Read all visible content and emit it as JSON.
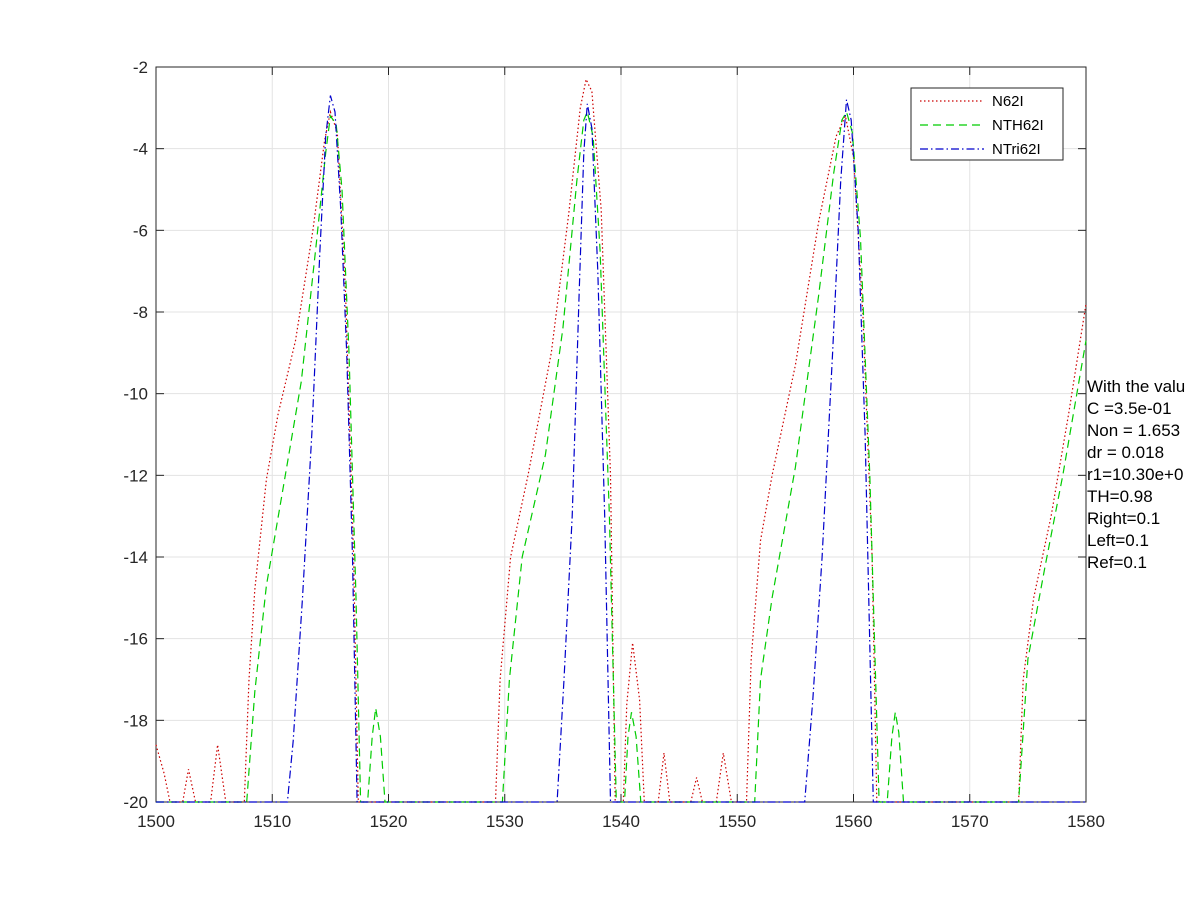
{
  "chart_data": {
    "type": "line",
    "xlim": [
      1500,
      1580
    ],
    "ylim": [
      -20,
      -2
    ],
    "x_ticks": [
      1500,
      1510,
      1520,
      1530,
      1540,
      1550,
      1560,
      1570,
      1580
    ],
    "y_ticks": [
      -20,
      -18,
      -16,
      -14,
      -12,
      -10,
      -8,
      -6,
      -4,
      -2
    ],
    "grid": true,
    "legend_position": "top-right",
    "colors": {
      "N62I": "#cc0000",
      "NTH62I": "#00cc00",
      "NTri62I": "#0000cc",
      "grid": "#e3e3e3",
      "axis": "#262626"
    },
    "series": [
      {
        "name": "N62I",
        "style": "dotted",
        "points": [
          [
            1500,
            -18.6
          ],
          [
            1500.7,
            -19.3
          ],
          [
            1501.2,
            -20
          ],
          [
            1502.3,
            -20
          ],
          [
            1502.8,
            -19.2
          ],
          [
            1503.4,
            -20
          ],
          [
            1504.7,
            -20
          ],
          [
            1505.3,
            -18.6
          ],
          [
            1506,
            -20
          ],
          [
            1507.6,
            -20
          ],
          [
            1508,
            -17
          ],
          [
            1508.5,
            -14.8
          ],
          [
            1509.5,
            -12.1
          ],
          [
            1510.5,
            -10.5
          ],
          [
            1512,
            -8.7
          ],
          [
            1513.5,
            -6
          ],
          [
            1514.5,
            -3.8
          ],
          [
            1515,
            -3.1
          ],
          [
            1515.6,
            -3.6
          ],
          [
            1516.3,
            -7.5
          ],
          [
            1517,
            -14
          ],
          [
            1517.4,
            -20
          ],
          [
            1518.3,
            -20
          ],
          [
            1529.2,
            -20
          ],
          [
            1529.6,
            -17
          ],
          [
            1530.5,
            -14
          ],
          [
            1532,
            -12
          ],
          [
            1534,
            -9
          ],
          [
            1535.5,
            -5.6
          ],
          [
            1536.5,
            -3
          ],
          [
            1537,
            -2.3
          ],
          [
            1537.5,
            -2.6
          ],
          [
            1538.3,
            -5.5
          ],
          [
            1539.1,
            -12
          ],
          [
            1539.5,
            -20
          ],
          [
            1540.2,
            -20
          ],
          [
            1540.5,
            -17.6
          ],
          [
            1541,
            -16.1
          ],
          [
            1541.6,
            -17.5
          ],
          [
            1542,
            -20
          ],
          [
            1543.2,
            -20
          ],
          [
            1543.7,
            -18.8
          ],
          [
            1544.2,
            -20
          ],
          [
            1546,
            -20
          ],
          [
            1546.5,
            -19.4
          ],
          [
            1547,
            -20
          ],
          [
            1548.2,
            -20
          ],
          [
            1548.8,
            -18.8
          ],
          [
            1549.5,
            -20
          ],
          [
            1550.8,
            -20
          ],
          [
            1551.2,
            -16.5
          ],
          [
            1552,
            -13.6
          ],
          [
            1553,
            -12
          ],
          [
            1555,
            -9.3
          ],
          [
            1557,
            -5.8
          ],
          [
            1558.5,
            -3.7
          ],
          [
            1559.3,
            -3.2
          ],
          [
            1560,
            -4.2
          ],
          [
            1560.8,
            -8
          ],
          [
            1561.6,
            -14
          ],
          [
            1562,
            -20
          ],
          [
            1562.8,
            -20
          ],
          [
            1574.2,
            -20
          ],
          [
            1574.6,
            -17
          ],
          [
            1575.5,
            -15
          ],
          [
            1577,
            -13
          ],
          [
            1578.5,
            -10.5
          ],
          [
            1580,
            -7.8
          ]
        ]
      },
      {
        "name": "NTH62I",
        "style": "dashed",
        "points": [
          [
            1500,
            -20
          ],
          [
            1507.8,
            -20
          ],
          [
            1508.5,
            -17.3
          ],
          [
            1509.5,
            -14.7
          ],
          [
            1511,
            -12.2
          ],
          [
            1512.5,
            -9.7
          ],
          [
            1513.8,
            -6.3
          ],
          [
            1514.6,
            -4.1
          ],
          [
            1515,
            -3.2
          ],
          [
            1515.5,
            -3.4
          ],
          [
            1516,
            -5
          ],
          [
            1516.6,
            -9
          ],
          [
            1517.2,
            -15
          ],
          [
            1517.6,
            -20
          ],
          [
            1518.2,
            -20
          ],
          [
            1518.6,
            -18.4
          ],
          [
            1518.9,
            -17.7
          ],
          [
            1519.3,
            -18.4
          ],
          [
            1519.7,
            -20
          ],
          [
            1529.8,
            -20
          ],
          [
            1530.4,
            -17
          ],
          [
            1531.5,
            -14
          ],
          [
            1533.5,
            -11.5
          ],
          [
            1535,
            -8.4
          ],
          [
            1536.2,
            -4.8
          ],
          [
            1536.8,
            -3.3
          ],
          [
            1537.1,
            -3.1
          ],
          [
            1537.6,
            -3.7
          ],
          [
            1538.2,
            -6.5
          ],
          [
            1539,
            -13
          ],
          [
            1539.6,
            -20
          ],
          [
            1540.3,
            -20
          ],
          [
            1540.6,
            -18.4
          ],
          [
            1540.9,
            -17.8
          ],
          [
            1541.3,
            -18.4
          ],
          [
            1541.7,
            -20
          ],
          [
            1551.5,
            -20
          ],
          [
            1552,
            -17
          ],
          [
            1553,
            -15
          ],
          [
            1555,
            -11.8
          ],
          [
            1557,
            -7.6
          ],
          [
            1558.3,
            -4.6
          ],
          [
            1559,
            -3.3
          ],
          [
            1559.4,
            -3.1
          ],
          [
            1559.9,
            -3.6
          ],
          [
            1560.6,
            -6.2
          ],
          [
            1561.4,
            -12
          ],
          [
            1562.2,
            -20
          ],
          [
            1562.9,
            -20
          ],
          [
            1563.3,
            -18.4
          ],
          [
            1563.6,
            -17.8
          ],
          [
            1563.9,
            -18.3
          ],
          [
            1564.3,
            -20
          ],
          [
            1574.2,
            -20
          ],
          [
            1575,
            -16.5
          ],
          [
            1576.5,
            -14.2
          ],
          [
            1578,
            -12
          ],
          [
            1580,
            -8.7
          ]
        ]
      },
      {
        "name": "NTri62I",
        "style": "dashdot",
        "points": [
          [
            1500,
            -20
          ],
          [
            1511.3,
            -20
          ],
          [
            1511.8,
            -18.5
          ],
          [
            1512.6,
            -15
          ],
          [
            1513.4,
            -11
          ],
          [
            1514.1,
            -6.5
          ],
          [
            1514.6,
            -3.7
          ],
          [
            1515,
            -2.7
          ],
          [
            1515.4,
            -3.1
          ],
          [
            1515.9,
            -5.5
          ],
          [
            1516.4,
            -9
          ],
          [
            1516.9,
            -14
          ],
          [
            1517.3,
            -20
          ],
          [
            1534.5,
            -20
          ],
          [
            1535.1,
            -17
          ],
          [
            1535.8,
            -13
          ],
          [
            1536.4,
            -7.5
          ],
          [
            1536.8,
            -4.1
          ],
          [
            1537.1,
            -2.9
          ],
          [
            1537.5,
            -3.5
          ],
          [
            1538,
            -7
          ],
          [
            1538.6,
            -13
          ],
          [
            1539.1,
            -20
          ],
          [
            1555.8,
            -20
          ],
          [
            1556.5,
            -17.5
          ],
          [
            1557.3,
            -14
          ],
          [
            1558.2,
            -9
          ],
          [
            1558.9,
            -4.8
          ],
          [
            1559.4,
            -2.8
          ],
          [
            1559.8,
            -3.3
          ],
          [
            1560.4,
            -6
          ],
          [
            1561,
            -11
          ],
          [
            1561.7,
            -20
          ],
          [
            1580,
            -20
          ]
        ]
      }
    ],
    "annotation_lines": [
      "With the valu",
      "C =3.5e-01",
      "Non = 1.653",
      "dr = 0.018",
      "r1=10.30e+0",
      "TH=0.98",
      "Right=0.1",
      "Left=0.1",
      "Ref=0.1"
    ]
  }
}
